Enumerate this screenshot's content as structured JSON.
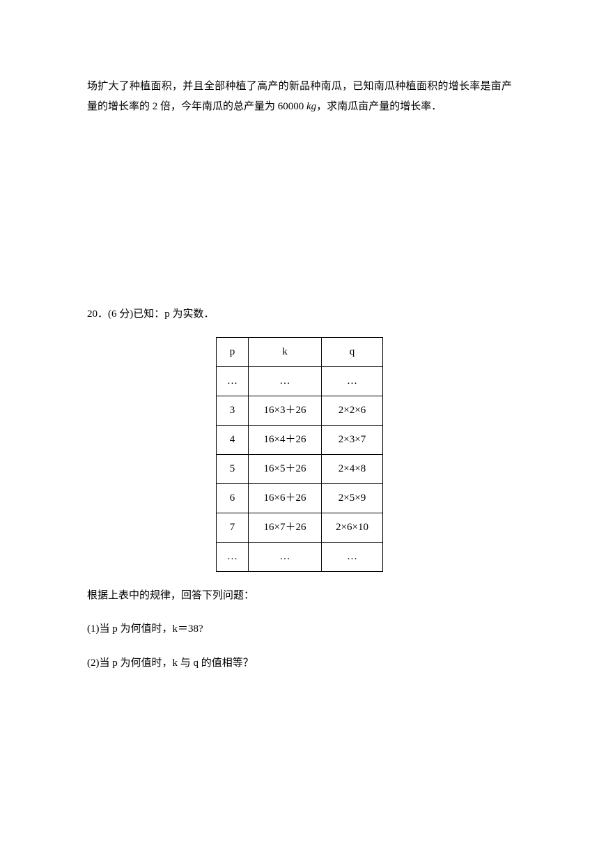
{
  "intro": {
    "line1": "场扩大了种植面积，并且全部种植了高产的新品种南瓜，已知南瓜种植面积的增长率是亩产",
    "line2_part1": "量的增长率的 2 倍，今年南瓜的总产量为 60000 ",
    "line2_italic": "kg",
    "line2_part2": "，求南瓜亩产量的增长率．"
  },
  "q20": {
    "header": "20．(6 分)已知：p 为实数．",
    "table": {
      "columns": [
        "p",
        "k",
        "q"
      ],
      "rows": [
        [
          "…",
          "…",
          "…"
        ],
        [
          "3",
          "16×3＋26",
          "2×2×6"
        ],
        [
          "4",
          "16×4＋26",
          "2×3×7"
        ],
        [
          "5",
          "16×5＋26",
          "2×4×8"
        ],
        [
          "6",
          "16×6＋26",
          "2×5×9"
        ],
        [
          "7",
          "16×7＋26",
          "2×6×10"
        ],
        [
          "…",
          "…",
          "…"
        ]
      ]
    },
    "below": "根据上表中的规律，回答下列问题：",
    "sub1": "(1)当 p 为何值时，k＝38?",
    "sub2": "(2)当 p 为何值时，k 与 q 的值相等？"
  }
}
